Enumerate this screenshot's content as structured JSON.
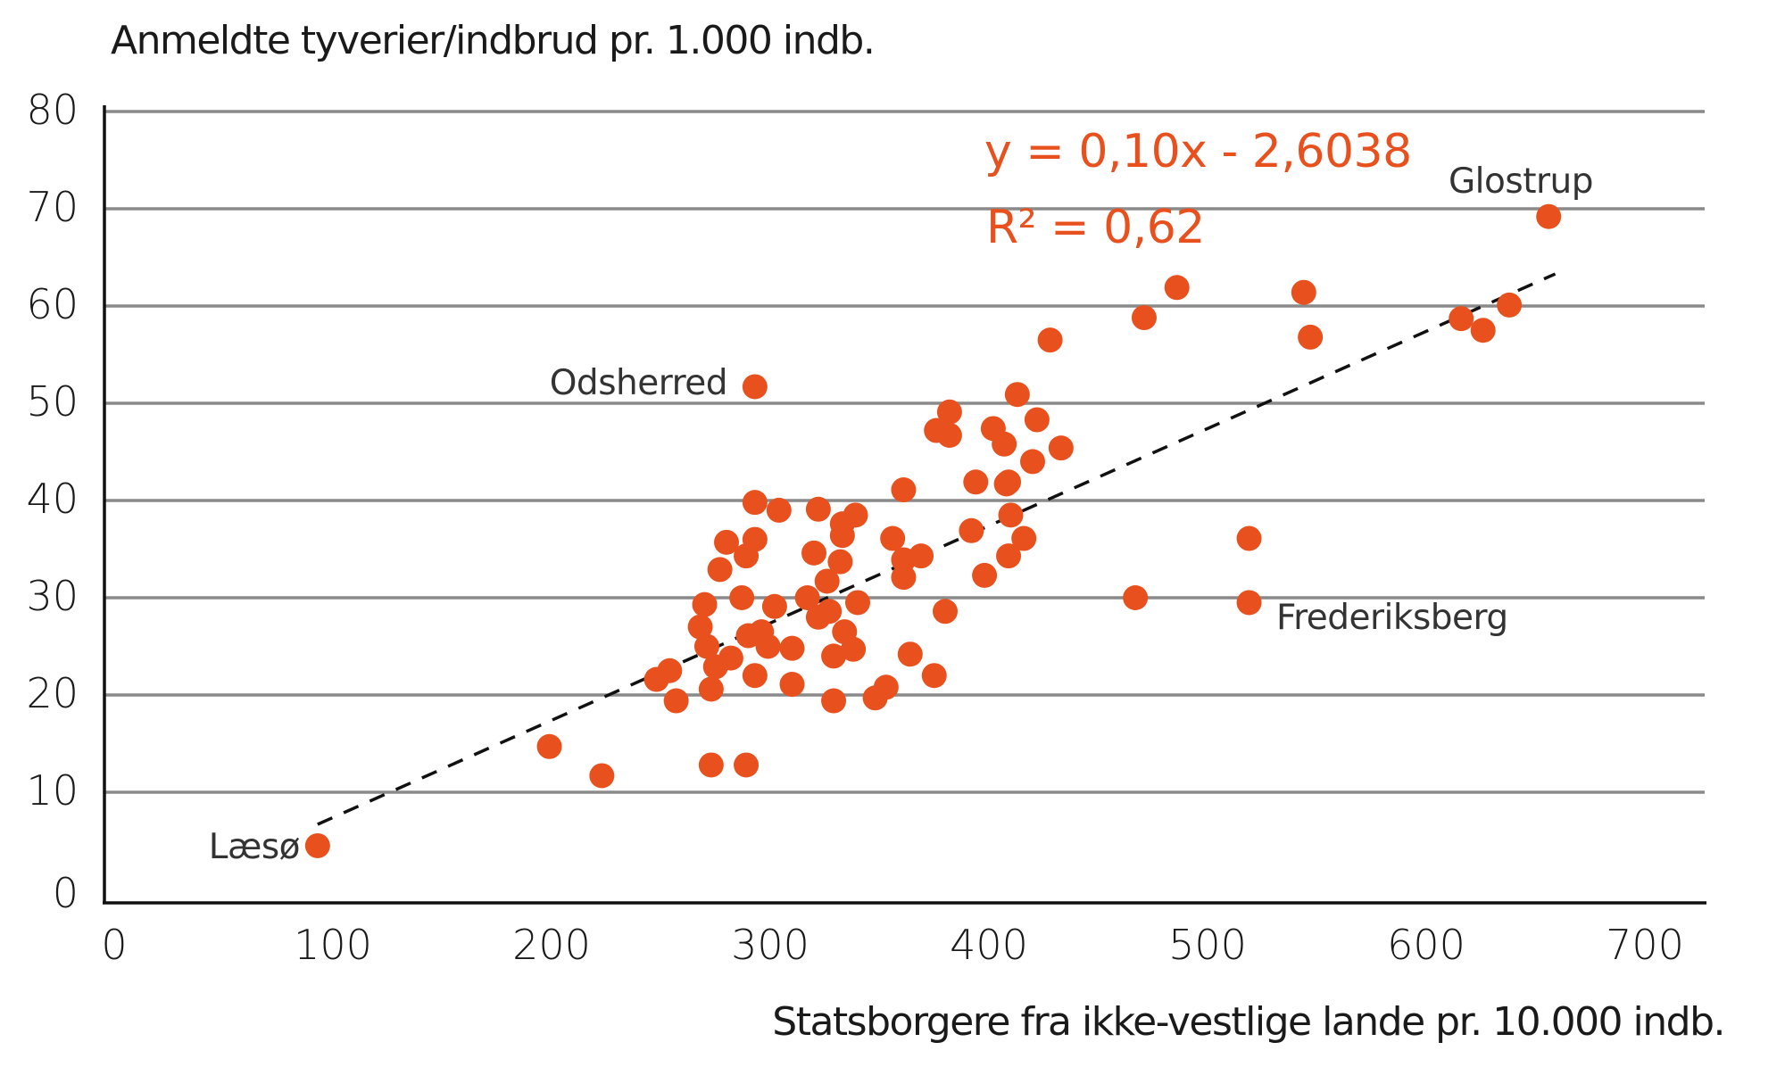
{
  "chart_data": {
    "type": "scatter",
    "title": "",
    "ylabel": "Anmeldte tyverier/indbrud pr. 1.000 indb.",
    "xlabel": "Statsborgere fra ikke-vestlige lande pr. 10.000 indb.",
    "xlim": [
      0,
      700
    ],
    "ylim": [
      0,
      80
    ],
    "x_ticks": [
      0,
      100,
      200,
      300,
      400,
      500,
      600,
      700
    ],
    "y_ticks": [
      0,
      10,
      20,
      30,
      40,
      50,
      60,
      70,
      80
    ],
    "x_tick_labels": [
      "0",
      "100",
      "200",
      "300",
      "400",
      "500",
      "600",
      "700"
    ],
    "y_tick_labels": [
      "0",
      "10",
      "20",
      "30",
      "40",
      "50",
      "60",
      "70",
      "80"
    ],
    "grid": {
      "horizontal": true,
      "vertical": false
    },
    "point_color": "#E8501E",
    "trendline": {
      "style": "dashed",
      "equation": "y = 0,10x - 2,6038",
      "r_squared": "R² = 0,62",
      "slope": 0.1,
      "intercept": -2.6038,
      "x_range": [
        93,
        659
      ]
    },
    "labeled_points": [
      {
        "label": "Læsø",
        "x": 93,
        "y": 4.5
      },
      {
        "label": "Odsherred",
        "x": 293,
        "y": 51.7
      },
      {
        "label": "Glostrup",
        "x": 656,
        "y": 69.2
      },
      {
        "label": "Frederiksberg",
        "x": 519,
        "y": 29.5
      }
    ],
    "points": [
      [
        93,
        4.5
      ],
      [
        199,
        14.7
      ],
      [
        223,
        11.7
      ],
      [
        273,
        12.8
      ],
      [
        289,
        12.8
      ],
      [
        248,
        21.6
      ],
      [
        254,
        22.5
      ],
      [
        257,
        19.4
      ],
      [
        268,
        27.0
      ],
      [
        270,
        29.3
      ],
      [
        271,
        25.0
      ],
      [
        273,
        20.6
      ],
      [
        275,
        22.9
      ],
      [
        277,
        32.9
      ],
      [
        280,
        35.7
      ],
      [
        282,
        23.8
      ],
      [
        287,
        30.0
      ],
      [
        289,
        34.3
      ],
      [
        290,
        26.1
      ],
      [
        293,
        36.0
      ],
      [
        293,
        39.8
      ],
      [
        293,
        22.0
      ],
      [
        296,
        26.5
      ],
      [
        299,
        25.0
      ],
      [
        302,
        29.1
      ],
      [
        304,
        39.0
      ],
      [
        310,
        24.8
      ],
      [
        310,
        21.1
      ],
      [
        317,
        30.0
      ],
      [
        320,
        34.6
      ],
      [
        322,
        39.1
      ],
      [
        322,
        28.0
      ],
      [
        326,
        31.7
      ],
      [
        327,
        28.6
      ],
      [
        329,
        24.0
      ],
      [
        329,
        19.4
      ],
      [
        332,
        33.7
      ],
      [
        333,
        37.6
      ],
      [
        333,
        36.4
      ],
      [
        334,
        26.5
      ],
      [
        338,
        24.7
      ],
      [
        339,
        38.5
      ],
      [
        340,
        29.5
      ],
      [
        348,
        19.7
      ],
      [
        353,
        20.8
      ],
      [
        356,
        36.1
      ],
      [
        361,
        41.1
      ],
      [
        361,
        33.9
      ],
      [
        361,
        32.1
      ],
      [
        364,
        24.2
      ],
      [
        369,
        34.3
      ],
      [
        375,
        22.0
      ],
      [
        376,
        47.2
      ],
      [
        380,
        28.6
      ],
      [
        382,
        49.1
      ],
      [
        382,
        46.7
      ],
      [
        392,
        36.9
      ],
      [
        394,
        41.9
      ],
      [
        398,
        32.3
      ],
      [
        402,
        47.4
      ],
      [
        407,
        45.8
      ],
      [
        408,
        41.7
      ],
      [
        409,
        41.9
      ],
      [
        409,
        34.3
      ],
      [
        410,
        38.5
      ],
      [
        413,
        50.9
      ],
      [
        416,
        36.1
      ],
      [
        420,
        44.0
      ],
      [
        422,
        48.3
      ],
      [
        428,
        56.5
      ],
      [
        433,
        45.4
      ],
      [
        467,
        30.0
      ],
      [
        471,
        58.8
      ],
      [
        486,
        61.9
      ],
      [
        519,
        36.1
      ],
      [
        519,
        29.5
      ],
      [
        544,
        61.4
      ],
      [
        547,
        56.8
      ],
      [
        616,
        58.7
      ],
      [
        626,
        57.5
      ],
      [
        638,
        60.1
      ],
      [
        656,
        69.2
      ],
      [
        293,
        51.7
      ]
    ]
  },
  "axes": {
    "y_title": "Anmeldte tyverier/indbrud pr. 1.000 indb.",
    "x_title": "Statsborgere fra ikke-vestlige lande pr. 10.000 indb."
  },
  "annotations": {
    "equation": "y = 0,10x - 2,6038",
    "r_squared": "R² = 0,62",
    "laeso": "Læsø",
    "odsherred": "Odsherred",
    "glostrup": "Glostrup",
    "frederiksberg": "Frederiksberg"
  }
}
